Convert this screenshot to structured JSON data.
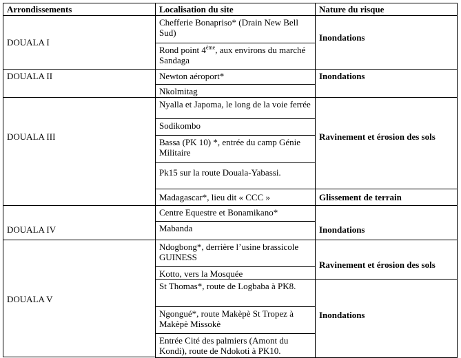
{
  "headers": {
    "arr": "Arrondissements",
    "loc": "Localisation du site",
    "risk": "Nature du risque"
  },
  "arr": [
    "DOUALA I",
    "DOUALA II",
    "DOUALA III",
    "DOUALA IV",
    "DOUALA V"
  ],
  "loc": [
    "Chefferie Bonapriso* (Drain New Bell Sud)",
    "Rond point 4",
    "Newton aéroport*",
    "Nkolmitag",
    "Nyalla et Japoma, le long de la voie ferrée",
    "Sodikombo",
    "Bassa (PK 10) *, entrée du camp Génie Militaire",
    "Pk15 sur la route Douala-Yabassi.",
    "Madagascar*, lieu dit « CCC »",
    "Centre Equestre et Bonamikano*",
    "Mabanda",
    "Ndogbong*, derrière l’usine brassicole GUINESS",
    "Kotto, vers la  Mosquée",
    "St Thomas*, route de Logbaba à PK8.",
    "Ngongué*, route Makèpè St Tropez à Makèpè Missokè",
    "Entrée Cité des palmiers (Amont du Kondi), route de Ndokoti à PK10."
  ],
  "loc_rond": {
    "sup": "ème",
    "rest": ", aux environs du marché Sandaga"
  },
  "risk": [
    "Inondations",
    "Inondations",
    "Ravinement et érosion des sols",
    "Glissement de terrain",
    "Inondations",
    "Ravinement et érosion des sols",
    "Inondations"
  ]
}
